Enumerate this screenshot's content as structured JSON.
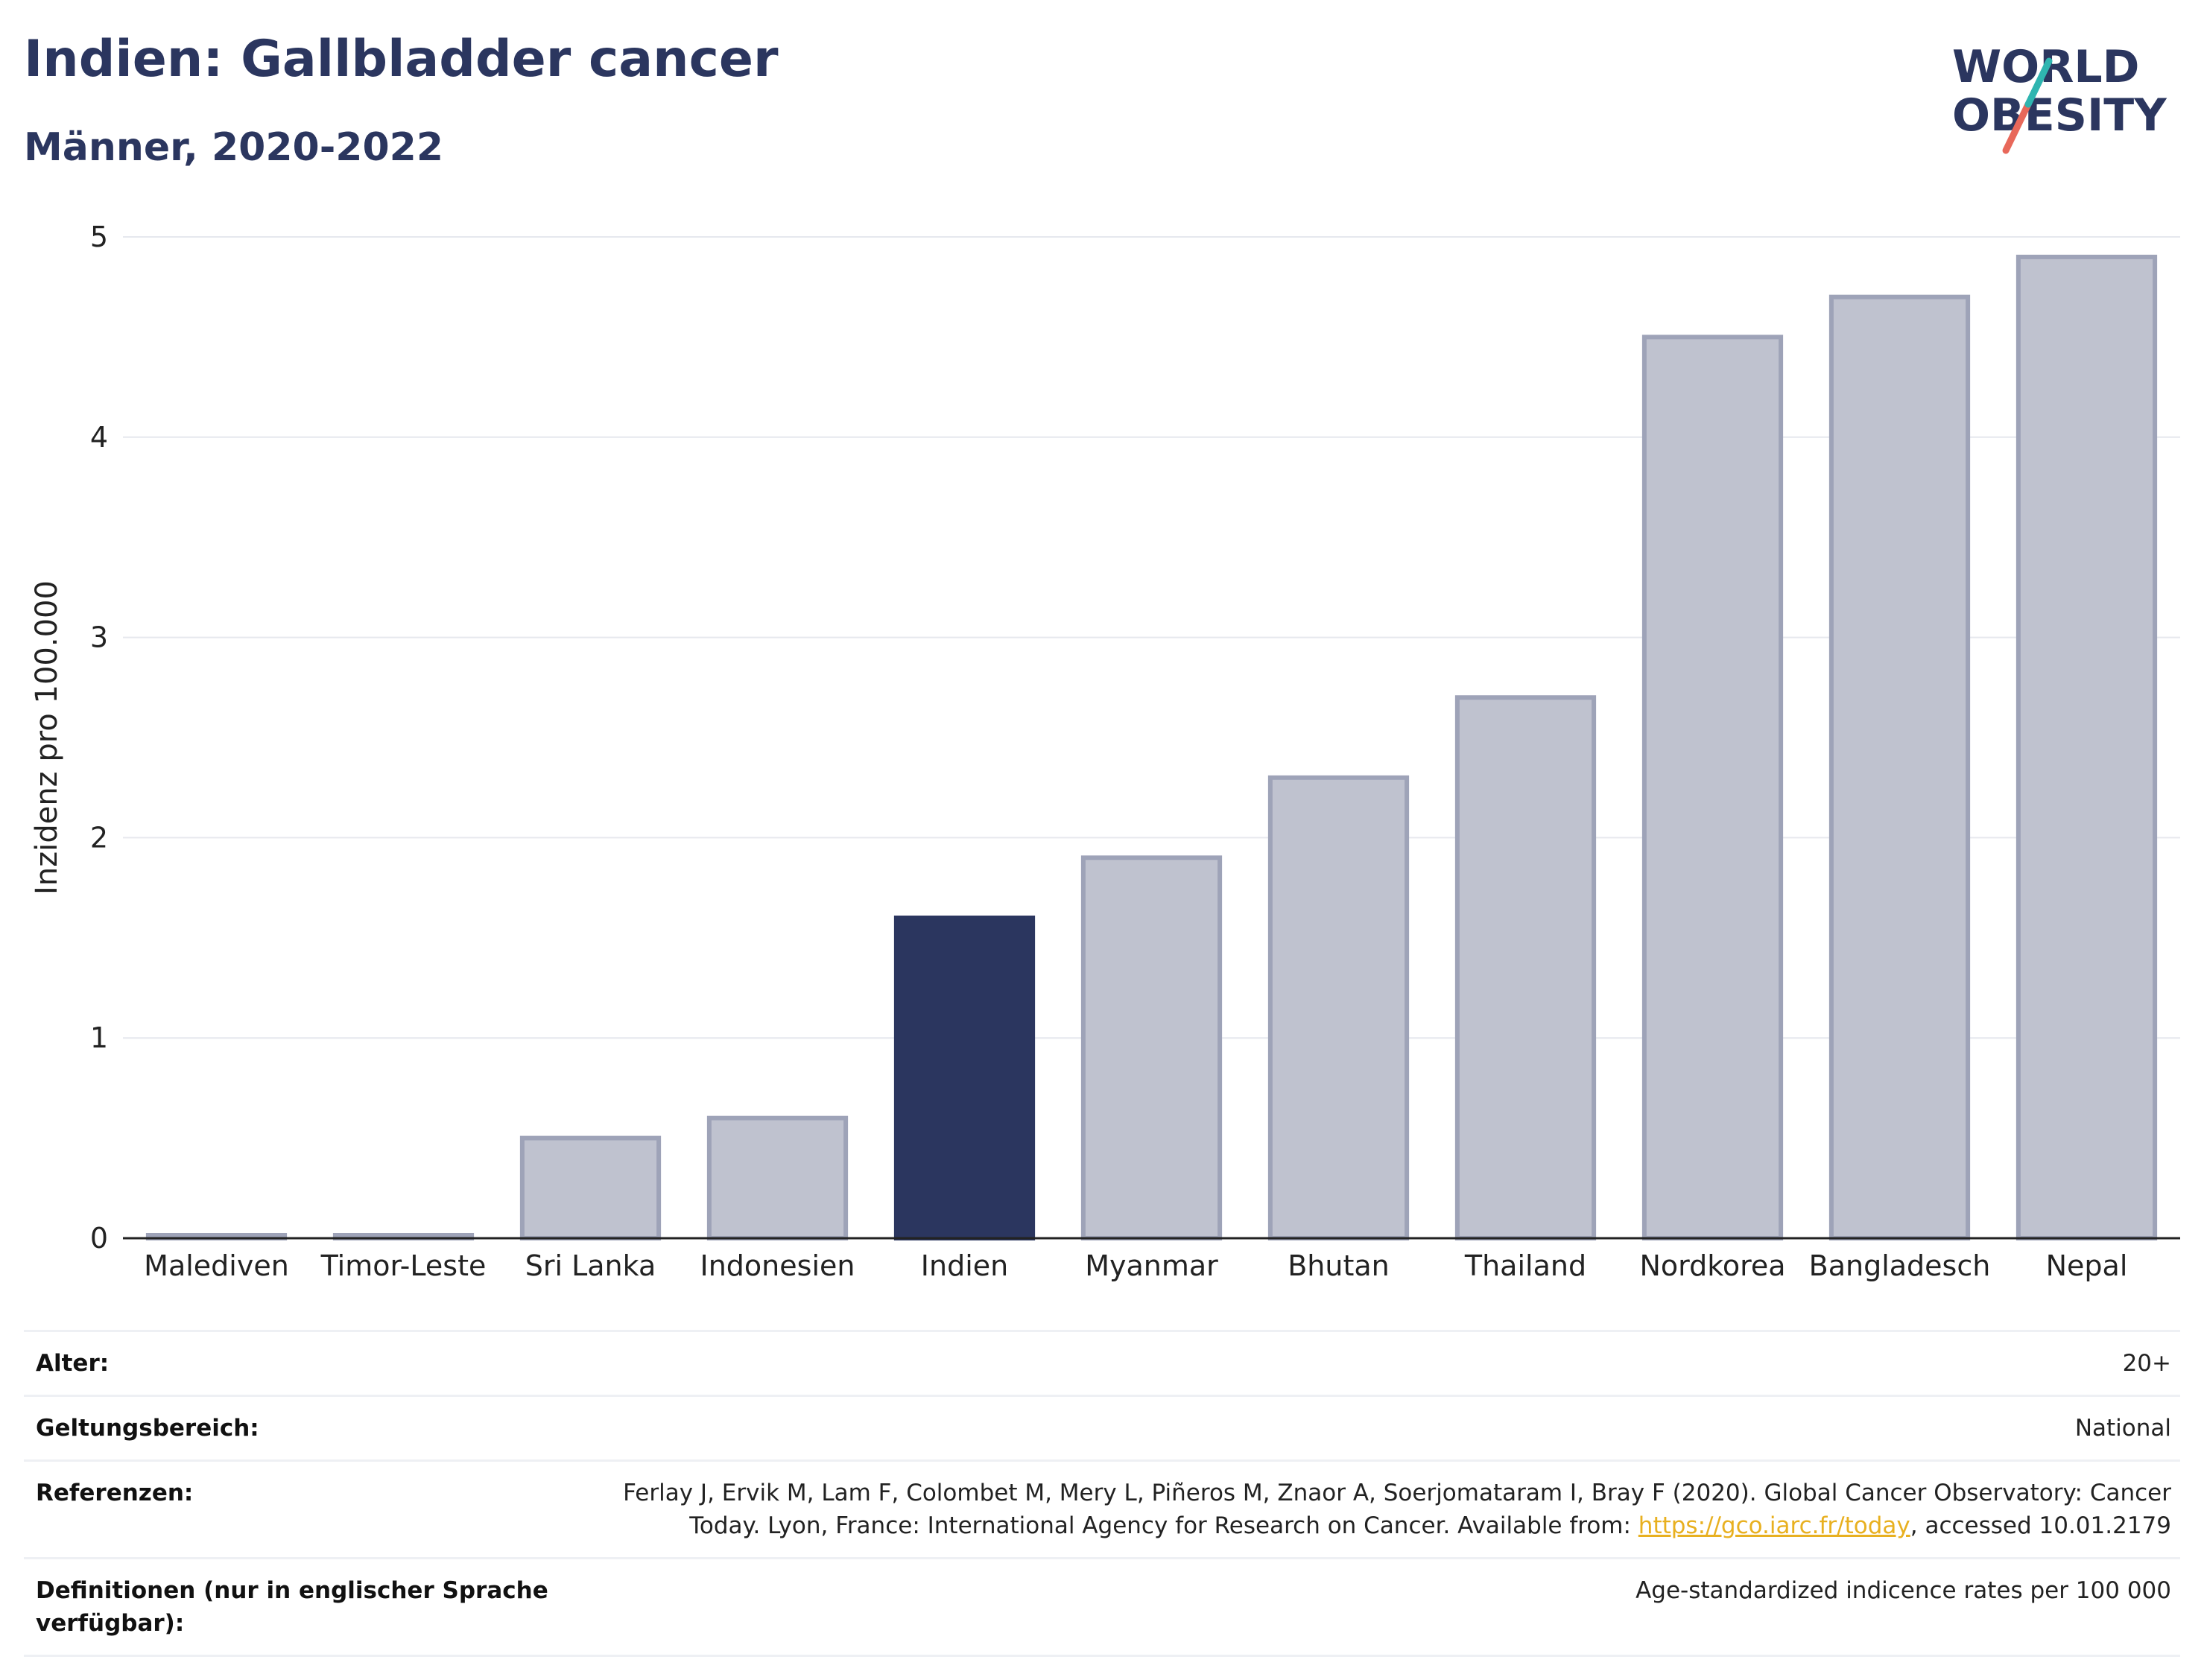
{
  "header": {
    "title": "Indien: Gallbladder cancer",
    "subtitle": "Männer, 2020-2022"
  },
  "logo": {
    "line1": "WORLD",
    "line2": "OBESITY"
  },
  "colors": {
    "highlight": "#2b365f",
    "bar_fill": "#bfc2cf",
    "bar_stroke": "#9ea3b8",
    "logo_teal": "#2fb5b0",
    "logo_red": "#e8685a"
  },
  "chart_data": {
    "type": "bar",
    "categories": [
      "Malediven",
      "Timor-Leste",
      "Sri Lanka",
      "Indonesien",
      "Indien",
      "Myanmar",
      "Bhutan",
      "Thailand",
      "Nordkorea",
      "Bangladesch",
      "Nepal"
    ],
    "values": [
      0.0,
      0.0,
      0.5,
      0.6,
      1.6,
      1.9,
      2.3,
      2.7,
      4.5,
      4.7,
      4.9
    ],
    "highlight": "Indien",
    "ylabel": "Inzidenz pro 100.000",
    "ylim": [
      0,
      5
    ],
    "yticks": [
      0,
      1,
      2,
      3,
      4,
      5
    ],
    "grid": true
  },
  "meta": {
    "age_label": "Alter:",
    "age_value": "20+",
    "scope_label": "Geltungsbereich:",
    "scope_value": "National",
    "ref_label": "Referenzen:",
    "ref_text_1": "Ferlay J, Ervik M, Lam F, Colombet M, Mery L, Piñeros M, Znaor A, Soerjomataram I, Bray F (2020). Global Cancer Observatory: Cancer",
    "ref_text_2": "Today. Lyon, France: International Agency for Research on Cancer. Available from: ",
    "ref_link": "https://gco.iarc.fr/today",
    "ref_text_3": ", accessed 10.01.2179",
    "def_label_1": "Definitionen (nur in englischer Sprache",
    "def_label_2": "verfügbar):",
    "def_value": "Age-standardized indicence rates per 100 000"
  }
}
